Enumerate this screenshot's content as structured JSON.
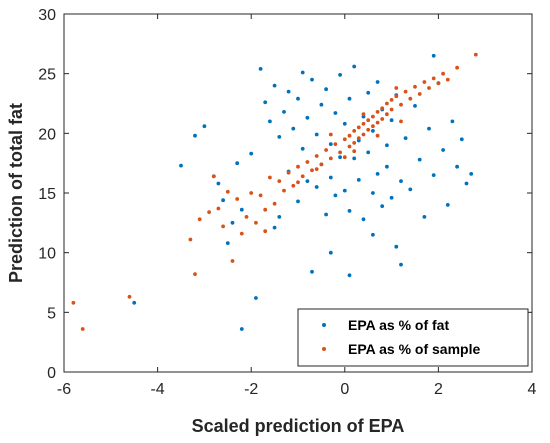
{
  "chart_data": {
    "type": "scatter",
    "xlabel": "Scaled prediction of EPA",
    "ylabel": "Prediction of total fat",
    "xlim": [
      -6,
      4
    ],
    "ylim": [
      0,
      30
    ],
    "xticks": [
      "-6",
      "-4",
      "-2",
      "0",
      "2",
      "4"
    ],
    "yticks": [
      "0",
      "5",
      "10",
      "15",
      "20",
      "25",
      "30"
    ],
    "grid": false,
    "legend_position": "bottom-right",
    "series": [
      {
        "name": "EPA as % of fat",
        "color": "#0072BD",
        "points": [
          [
            -4.5,
            5.8
          ],
          [
            -3.5,
            17.3
          ],
          [
            -3.2,
            19.8
          ],
          [
            -3.0,
            20.6
          ],
          [
            -2.8,
            16.4
          ],
          [
            -2.7,
            15.8
          ],
          [
            -2.6,
            14.4
          ],
          [
            -2.4,
            12.5
          ],
          [
            -2.3,
            17.5
          ],
          [
            -2.2,
            13.6
          ],
          [
            -2.2,
            3.6
          ],
          [
            -2.0,
            18.3
          ],
          [
            -1.9,
            6.2
          ],
          [
            -1.8,
            25.4
          ],
          [
            -1.7,
            22.6
          ],
          [
            -1.6,
            21.0
          ],
          [
            -1.5,
            24.0
          ],
          [
            -1.5,
            12.1
          ],
          [
            -1.4,
            19.7
          ],
          [
            -1.3,
            21.8
          ],
          [
            -1.2,
            23.5
          ],
          [
            -1.2,
            16.8
          ],
          [
            -1.1,
            20.4
          ],
          [
            -1.0,
            22.9
          ],
          [
            -1.0,
            14.3
          ],
          [
            -0.9,
            18.7
          ],
          [
            -0.9,
            25.1
          ],
          [
            -0.8,
            16.0
          ],
          [
            -0.8,
            21.3
          ],
          [
            -0.7,
            24.5
          ],
          [
            -0.7,
            8.4
          ],
          [
            -0.6,
            19.9
          ],
          [
            -0.6,
            15.5
          ],
          [
            -0.5,
            22.4
          ],
          [
            -0.5,
            17.4
          ],
          [
            -0.4,
            13.2
          ],
          [
            -0.4,
            23.7
          ],
          [
            -0.3,
            19.1
          ],
          [
            -0.3,
            16.3
          ],
          [
            -0.2,
            21.7
          ],
          [
            -0.2,
            14.8
          ],
          [
            -0.1,
            24.9
          ],
          [
            -0.1,
            18.0
          ],
          [
            0.0,
            20.8
          ],
          [
            0.0,
            15.2
          ],
          [
            0.1,
            22.9
          ],
          [
            0.1,
            8.1
          ],
          [
            0.1,
            13.5
          ],
          [
            0.2,
            17.9
          ],
          [
            0.2,
            25.6
          ],
          [
            0.3,
            19.4
          ],
          [
            0.3,
            16.1
          ],
          [
            0.4,
            21.4
          ],
          [
            0.4,
            12.8
          ],
          [
            0.5,
            23.4
          ],
          [
            0.5,
            18.4
          ],
          [
            0.6,
            15.0
          ],
          [
            0.6,
            20.2
          ],
          [
            0.7,
            24.3
          ],
          [
            0.7,
            16.6
          ],
          [
            0.8,
            22.0
          ],
          [
            0.8,
            13.9
          ],
          [
            0.9,
            19.0
          ],
          [
            0.9,
            17.2
          ],
          [
            1.0,
            21.1
          ],
          [
            1.0,
            14.6
          ],
          [
            1.1,
            23.2
          ],
          [
            1.2,
            16.0
          ],
          [
            1.2,
            9.0
          ],
          [
            1.3,
            19.6
          ],
          [
            1.4,
            15.3
          ],
          [
            1.5,
            22.3
          ],
          [
            1.6,
            17.8
          ],
          [
            1.7,
            13.0
          ],
          [
            1.8,
            20.4
          ],
          [
            1.9,
            16.5
          ],
          [
            2.0,
            24.2
          ],
          [
            2.1,
            18.6
          ],
          [
            2.2,
            14.0
          ],
          [
            2.3,
            21.0
          ],
          [
            2.4,
            17.2
          ],
          [
            2.5,
            19.5
          ],
          [
            2.6,
            15.8
          ],
          [
            2.7,
            16.6
          ],
          [
            1.9,
            26.5
          ],
          [
            -1.4,
            13.0
          ],
          [
            -0.3,
            10.0
          ],
          [
            0.6,
            11.5
          ],
          [
            1.1,
            10.5
          ],
          [
            -2.5,
            10.8
          ]
        ]
      },
      {
        "name": "EPA as % of sample",
        "color": "#D95319",
        "points": [
          [
            -5.8,
            5.8
          ],
          [
            -5.6,
            3.6
          ],
          [
            -4.6,
            6.3
          ],
          [
            -3.3,
            11.1
          ],
          [
            -3.2,
            8.2
          ],
          [
            -3.1,
            12.8
          ],
          [
            -2.9,
            13.4
          ],
          [
            -2.8,
            16.4
          ],
          [
            -2.7,
            13.7
          ],
          [
            -2.6,
            12.2
          ],
          [
            -2.5,
            15.1
          ],
          [
            -2.4,
            9.3
          ],
          [
            -2.3,
            14.5
          ],
          [
            -2.2,
            11.6
          ],
          [
            -2.1,
            13.0
          ],
          [
            -2.0,
            15.0
          ],
          [
            -1.9,
            12.5
          ],
          [
            -1.8,
            14.8
          ],
          [
            -1.7,
            13.6
          ],
          [
            -1.6,
            16.3
          ],
          [
            -1.5,
            14.1
          ],
          [
            -1.4,
            16.0
          ],
          [
            -1.3,
            15.2
          ],
          [
            -1.2,
            16.7
          ],
          [
            -1.1,
            15.6
          ],
          [
            -1.0,
            17.2
          ],
          [
            -0.9,
            16.4
          ],
          [
            -0.8,
            17.6
          ],
          [
            -0.7,
            16.9
          ],
          [
            -0.6,
            18.1
          ],
          [
            -0.5,
            17.4
          ],
          [
            -0.4,
            18.6
          ],
          [
            -0.3,
            17.9
          ],
          [
            -0.2,
            19.1
          ],
          [
            -0.1,
            18.4
          ],
          [
            0.0,
            19.5
          ],
          [
            0.0,
            18.0
          ],
          [
            0.1,
            19.8
          ],
          [
            0.1,
            18.9
          ],
          [
            0.2,
            20.2
          ],
          [
            0.2,
            19.2
          ],
          [
            0.3,
            20.5
          ],
          [
            0.3,
            19.6
          ],
          [
            0.4,
            20.8
          ],
          [
            0.4,
            19.9
          ],
          [
            0.5,
            21.1
          ],
          [
            0.5,
            20.3
          ],
          [
            0.6,
            21.4
          ],
          [
            0.6,
            20.6
          ],
          [
            0.7,
            21.8
          ],
          [
            0.7,
            20.9
          ],
          [
            0.8,
            22.1
          ],
          [
            0.8,
            21.2
          ],
          [
            0.9,
            22.5
          ],
          [
            0.9,
            21.6
          ],
          [
            1.0,
            22.8
          ],
          [
            1.0,
            22.0
          ],
          [
            1.1,
            23.1
          ],
          [
            1.2,
            22.4
          ],
          [
            1.3,
            23.5
          ],
          [
            1.4,
            22.9
          ],
          [
            1.5,
            23.9
          ],
          [
            1.6,
            23.3
          ],
          [
            1.7,
            24.3
          ],
          [
            1.8,
            23.8
          ],
          [
            1.9,
            24.6
          ],
          [
            2.0,
            24.2
          ],
          [
            2.1,
            25.0
          ],
          [
            2.2,
            24.5
          ],
          [
            2.4,
            25.5
          ],
          [
            2.8,
            26.6
          ],
          [
            -1.0,
            15.9
          ],
          [
            -0.6,
            17.0
          ],
          [
            0.2,
            18.5
          ],
          [
            0.7,
            19.8
          ],
          [
            1.2,
            21.0
          ],
          [
            -0.3,
            19.9
          ],
          [
            0.4,
            21.6
          ],
          [
            1.1,
            23.8
          ],
          [
            -1.7,
            11.8
          ]
        ]
      }
    ]
  }
}
